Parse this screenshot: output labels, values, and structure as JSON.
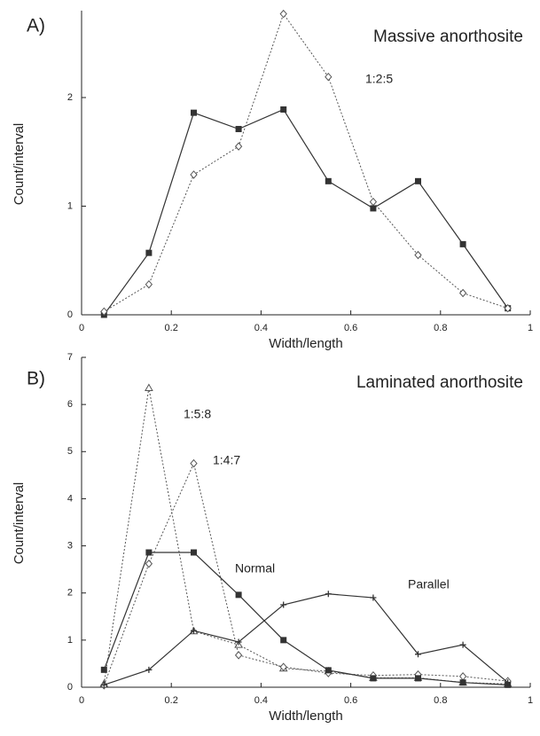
{
  "chart_data": [
    {
      "type": "line",
      "panel_label": "A)",
      "title": "Massive anorthosite",
      "xlabel": "Width/length",
      "ylabel": "Count/interval",
      "xlim": [
        0,
        1
      ],
      "xticks": [
        0,
        0.2,
        0.4,
        0.6,
        0.8,
        1
      ],
      "ylim": [
        0,
        2.8
      ],
      "yticks": [
        0,
        1,
        2
      ],
      "x": [
        0.05,
        0.15,
        0.25,
        0.35,
        0.45,
        0.55,
        0.65,
        0.75,
        0.85,
        0.95
      ],
      "series": [
        {
          "color": "#333333",
          "marker": "square",
          "linestyle": "solid",
          "values": [
            0,
            0.57,
            1.86,
            1.71,
            1.89,
            1.23,
            0.98,
            1.23,
            0.65,
            0.06
          ]
        },
        {
          "name": "1:2:5",
          "color": "#555555",
          "marker": "diamond",
          "linestyle": "dotted",
          "values": [
            0.03,
            0.28,
            1.29,
            1.55,
            2.77,
            2.19,
            1.04,
            0.55,
            0.2,
            0.06
          ]
        }
      ]
    },
    {
      "type": "line",
      "panel_label": "B)",
      "title": "Laminated anorthosite",
      "xlabel": "Width/length",
      "ylabel": "Count/interval",
      "xlim": [
        0,
        1
      ],
      "xticks": [
        0,
        0.2,
        0.4,
        0.6,
        0.8,
        1
      ],
      "ylim": [
        0,
        7
      ],
      "yticks": [
        0,
        1,
        2,
        3,
        4,
        5,
        6,
        7
      ],
      "x": [
        0.05,
        0.15,
        0.25,
        0.35,
        0.45,
        0.55,
        0.65,
        0.75,
        0.85,
        0.95
      ],
      "series": [
        {
          "name": "1:5:8",
          "color": "#555555",
          "marker": "triangle",
          "linestyle": "dotted",
          "values": [
            0.07,
            6.35,
            1.19,
            0.9,
            0.4,
            0.34,
            0.2,
            0.2,
            0.1,
            0.07
          ]
        },
        {
          "name": "1:4:7",
          "color": "#555555",
          "marker": "diamond",
          "linestyle": "dotted",
          "values": [
            0.04,
            2.62,
            4.75,
            0.68,
            0.43,
            0.3,
            0.25,
            0.27,
            0.23,
            0.13
          ]
        },
        {
          "name": "Normal",
          "color": "#333333",
          "marker": "square",
          "linestyle": "solid",
          "values": [
            0.37,
            2.86,
            2.86,
            1.96,
            1.0,
            0.36,
            0.19,
            0.19,
            0.1,
            0.05
          ]
        },
        {
          "name": "Parallel",
          "color": "#333333",
          "marker": "plus",
          "linestyle": "solid",
          "values": [
            0.05,
            0.37,
            1.2,
            0.96,
            1.75,
            1.98,
            1.9,
            0.7,
            0.9,
            0.1
          ]
        }
      ]
    }
  ]
}
